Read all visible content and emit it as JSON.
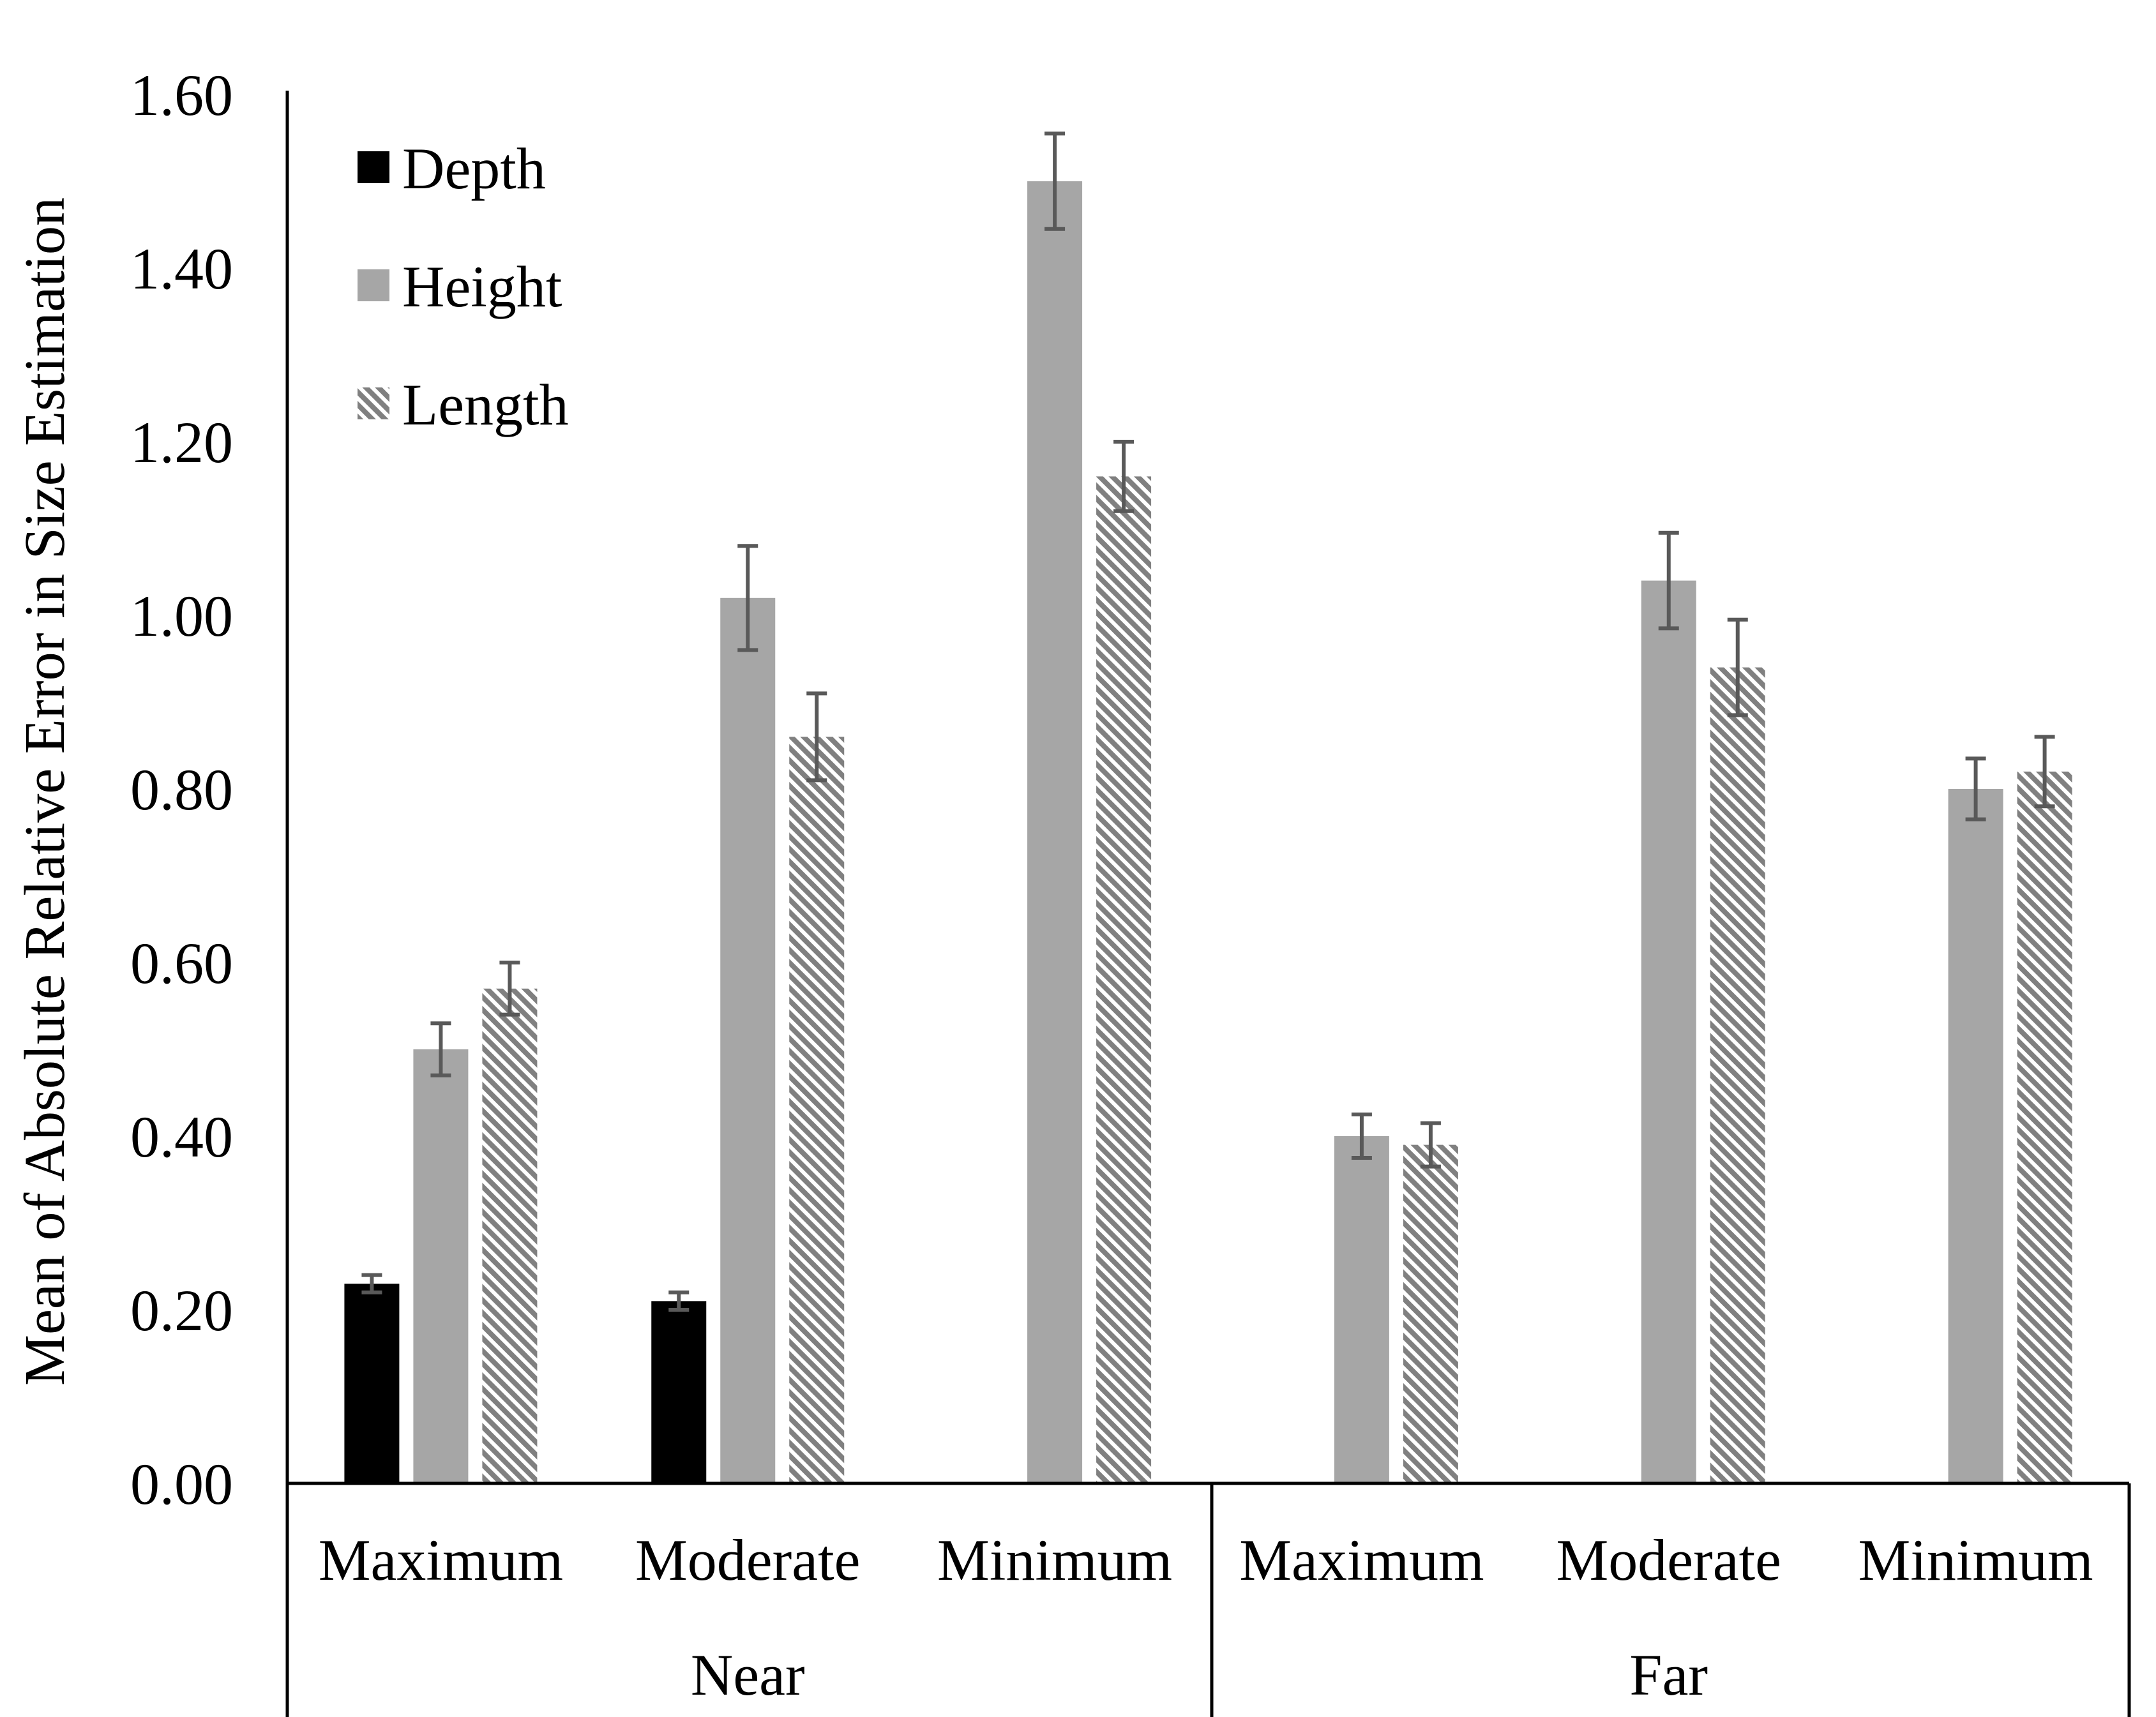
{
  "chart_data": {
    "type": "bar",
    "title": "",
    "xlabel": "",
    "ylabel": "Mean of Absolute Relative Error in Size Estimation",
    "ylim": [
      0,
      1.6
    ],
    "yticks": [
      "0.00",
      "0.20",
      "0.40",
      "0.60",
      "0.80",
      "1.00",
      "1.20",
      "1.40",
      "1.60"
    ],
    "grid": false,
    "legend_position": "top-left",
    "groups": [
      {
        "label": "Near",
        "categories": [
          "Maximum",
          "Moderate",
          "Minimum"
        ]
      },
      {
        "label": "Far",
        "categories": [
          "Maximum",
          "Moderate",
          "Minimum"
        ]
      }
    ],
    "series": [
      {
        "name": "Depth",
        "color": "#000000",
        "pattern": "solid",
        "values": [
          0.23,
          0.21,
          null,
          null,
          null,
          null
        ],
        "errors": [
          0.01,
          0.01,
          null,
          null,
          null,
          null
        ]
      },
      {
        "name": "Height",
        "color": "#a6a6a6",
        "pattern": "solid",
        "values": [
          0.5,
          1.02,
          1.5,
          0.4,
          1.04,
          0.8
        ],
        "errors": [
          0.03,
          0.06,
          0.055,
          0.025,
          0.055,
          0.035
        ]
      },
      {
        "name": "Length",
        "color": "#808080",
        "pattern": "diagonal-hatch",
        "values": [
          0.57,
          0.86,
          1.16,
          0.39,
          0.94,
          0.82
        ],
        "errors": [
          0.03,
          0.05,
          0.04,
          0.025,
          0.055,
          0.04
        ]
      }
    ],
    "error_bar_color": "#595959"
  }
}
